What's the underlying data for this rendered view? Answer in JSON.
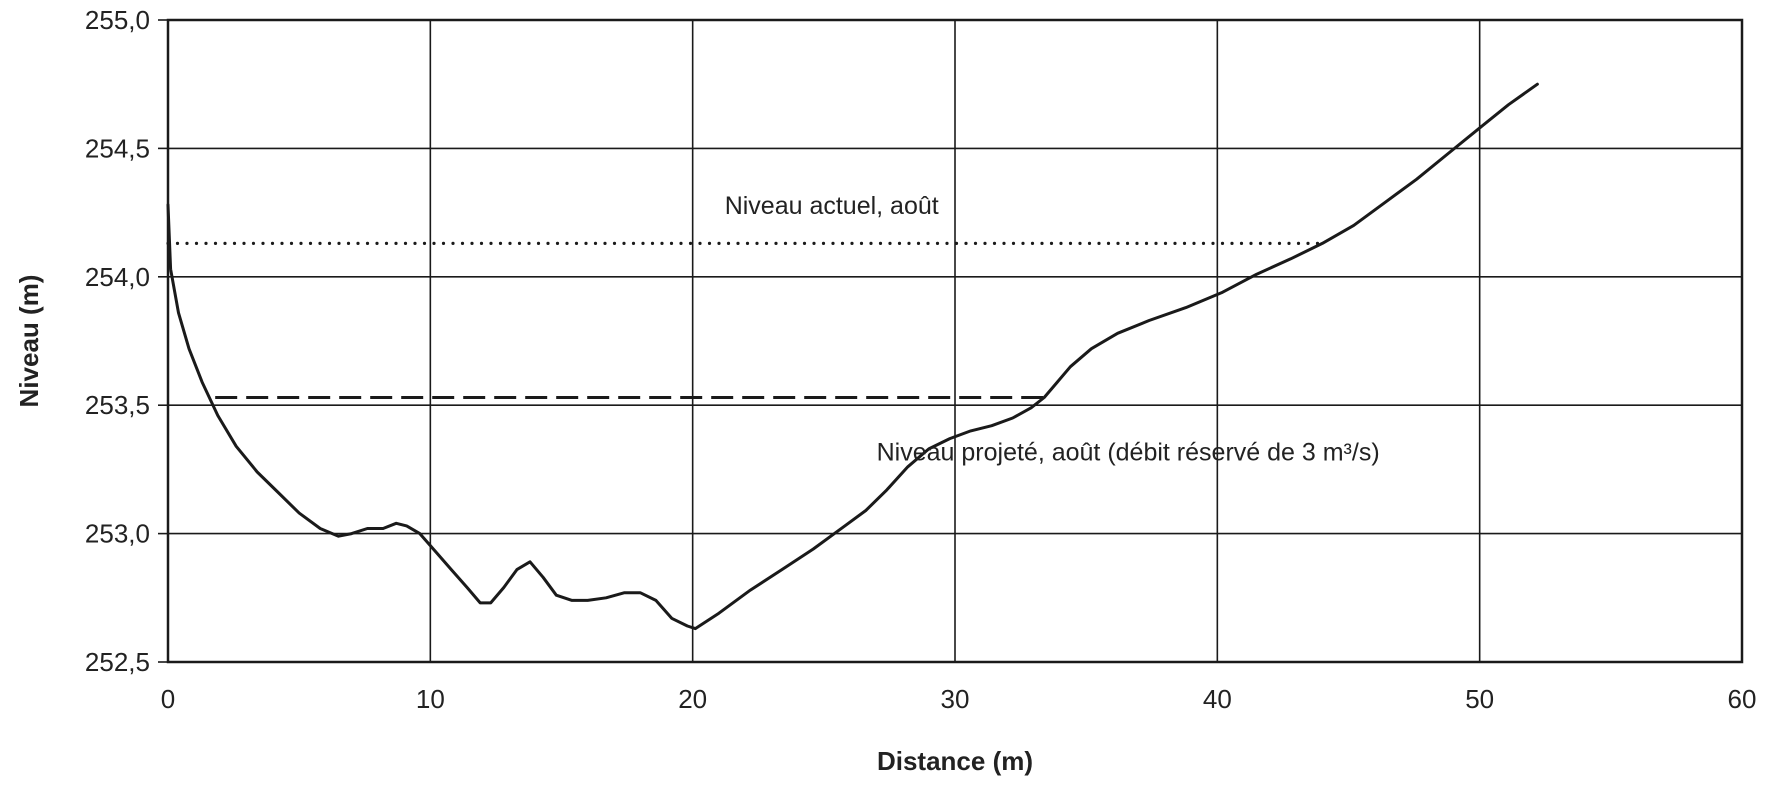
{
  "chart_data": {
    "type": "line",
    "xlabel": "Distance (m)",
    "ylabel": "Niveau (m)",
    "xlim": [
      0,
      60
    ],
    "ylim": [
      252.5,
      255.0
    ],
    "x_ticks": [
      0,
      10,
      20,
      30,
      40,
      50,
      60
    ],
    "x_tick_labels": [
      "0",
      "10",
      "20",
      "30",
      "40",
      "50",
      "60"
    ],
    "y_ticks": [
      252.5,
      253.0,
      253.5,
      254.0,
      254.5,
      255.0
    ],
    "y_tick_labels": [
      "252,5",
      "253,0",
      "253,5",
      "254,0",
      "254,5",
      "255,0"
    ],
    "grid": true,
    "colors": {
      "line": "#1a1a1a",
      "grid": "#1a1a1a",
      "background": "#ffffff"
    },
    "series": [
      {
        "style": "solid",
        "x": [
          0,
          0.1,
          0.4,
          0.8,
          1.3,
          1.9,
          2.6,
          3.4,
          4.2,
          5.0,
          5.8,
          6.5,
          7.0,
          7.6,
          8.2,
          8.7,
          9.1,
          9.6,
          10.2,
          10.8,
          11.4,
          11.9,
          12.3,
          12.8,
          13.3,
          13.8,
          14.3,
          14.8,
          15.4,
          16.0,
          16.7,
          17.4,
          18.0,
          18.6,
          19.2,
          19.8,
          20.1,
          21.0,
          22.2,
          23.4,
          24.6,
          25.8,
          26.6,
          27.4,
          28.2,
          29.0,
          29.8,
          30.6,
          31.4,
          32.2,
          32.9,
          33.4,
          33.9,
          34.4,
          35.2,
          36.2,
          37.4,
          38.8,
          40.2,
          41.5,
          42.8,
          44.0,
          45.2,
          46.4,
          47.6,
          48.8,
          50.0,
          51.1,
          52.2
        ],
        "y": [
          254.28,
          254.03,
          253.86,
          253.72,
          253.59,
          253.46,
          253.34,
          253.24,
          253.16,
          253.08,
          253.02,
          252.99,
          253.0,
          253.02,
          253.02,
          253.04,
          253.03,
          253.0,
          252.93,
          252.86,
          252.79,
          252.73,
          252.73,
          252.79,
          252.86,
          252.89,
          252.83,
          252.76,
          252.74,
          252.74,
          252.75,
          252.77,
          252.77,
          252.74,
          252.67,
          252.64,
          252.63,
          252.69,
          252.78,
          252.86,
          252.94,
          253.03,
          253.09,
          253.17,
          253.26,
          253.33,
          253.37,
          253.4,
          253.42,
          253.45,
          253.49,
          253.53,
          253.59,
          253.65,
          253.72,
          253.78,
          253.83,
          253.88,
          253.94,
          254.01,
          254.07,
          254.13,
          254.2,
          254.29,
          254.38,
          254.48,
          254.58,
          254.67,
          254.75
        ]
      },
      {
        "style": "dotted",
        "x": [
          0,
          44
        ],
        "y": [
          254.13,
          254.13
        ]
      },
      {
        "style": "dashed",
        "x": [
          1.8,
          33.5
        ],
        "y": [
          253.53,
          253.53
        ]
      }
    ],
    "annotations": [
      {
        "text": "Niveau actuel, août",
        "x": 25.3,
        "y": 254.28
      },
      {
        "text": "Niveau projeté, août (débit réservé de 3 m³/s)",
        "x": 36.6,
        "y": 253.32
      }
    ]
  }
}
